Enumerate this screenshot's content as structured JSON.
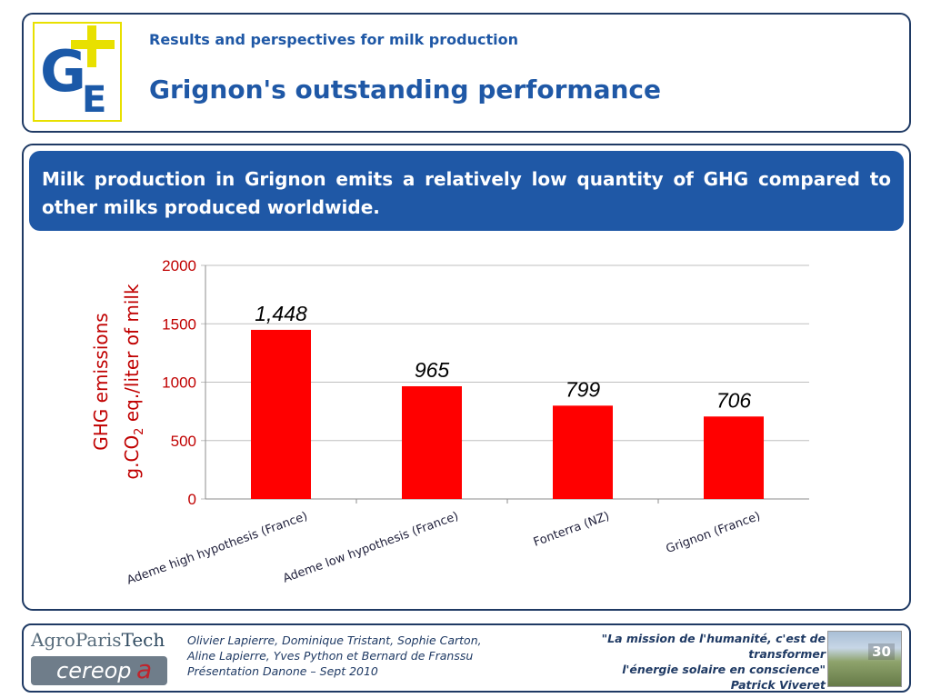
{
  "header": {
    "subtitle": "Results and perspectives for milk production",
    "title": "Grignon's outstanding performance",
    "logo": {
      "letter_g": "G",
      "letter_e": "E",
      "plus": "+"
    }
  },
  "banner": {
    "text": "Milk production in Grignon emits a relatively low quantity of GHG compared to other milks produced worldwide."
  },
  "chart_data": {
    "type": "bar",
    "categories": [
      "Ademe high hypothesis (France)",
      "Ademe low hypothesis (France)",
      "Fonterra (NZ)",
      "Grignon (France)"
    ],
    "values": [
      1448,
      965,
      799,
      706
    ],
    "data_labels": [
      "1,448",
      "965",
      "799",
      "706"
    ],
    "ylabel_line1": "GHG emissions",
    "ylabel_line2_pre": "g.CO",
    "ylabel_line2_sub": "2",
    "ylabel_line2_post": " eq./liter of milk",
    "ylim": [
      0,
      2000
    ],
    "yticks": [
      0,
      500,
      1000,
      1500,
      2000
    ],
    "grid": true,
    "colors": {
      "bar": "#ff0000",
      "axis_text": "#c00000",
      "grid": "#bfbfbf"
    }
  },
  "footer": {
    "authors": [
      "Olivier Lapierre, Dominique Tristant, Sophie Carton,",
      "Aline Lapierre, Yves Python et Bernard de Franssu",
      "Présentation Danone – Sept 2010"
    ],
    "quote": [
      "\"La mission de l'humanité, c'est de transformer",
      "l'énergie solaire en conscience\"",
      "Patrick Viveret"
    ],
    "slide_number": "30",
    "agro_logo": {
      "part1": "Agro",
      "part2": "Paris",
      "part3": "Tech"
    },
    "cereopa_logo": {
      "main": "cereop",
      "accent": "a"
    }
  }
}
